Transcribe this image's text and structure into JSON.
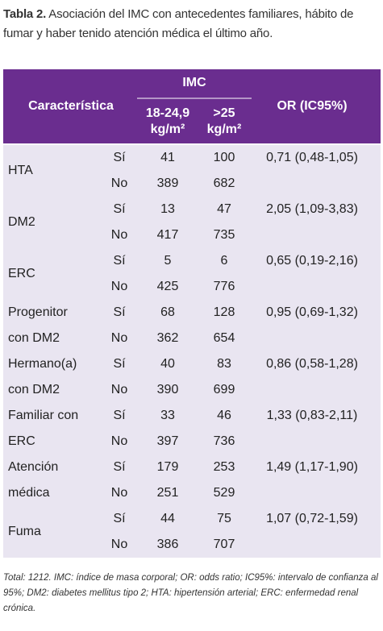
{
  "caption": {
    "label": "Tabla 2.",
    "text": "Asociación del IMC con antecedentes familiares, hábito de fumar y haber tenido atención médica el último año."
  },
  "table": {
    "header": {
      "characteristic": "Característica",
      "group": "IMC",
      "col1": [
        "18-24,9",
        "kg/m²"
      ],
      "col2": [
        ">25",
        "kg/m²"
      ],
      "or": "OR (IC95%)"
    },
    "groups": [
      {
        "label": [
          "HTA"
        ],
        "rows": [
          {
            "answer": "Sí",
            "c1": 41,
            "c2": 100
          },
          {
            "answer": "No",
            "c1": 389,
            "c2": 682
          }
        ],
        "or": "0,71 (0,48-1,05)"
      },
      {
        "label": [
          "DM2"
        ],
        "rows": [
          {
            "answer": "Sí",
            "c1": 13,
            "c2": 47
          },
          {
            "answer": "No",
            "c1": 417,
            "c2": 735
          }
        ],
        "or": "2,05 (1,09-3,83)"
      },
      {
        "label": [
          "ERC"
        ],
        "rows": [
          {
            "answer": "Sí",
            "c1": 5,
            "c2": 6
          },
          {
            "answer": "No",
            "c1": 425,
            "c2": 776
          }
        ],
        "or": "0,65 (0,19-2,16)"
      },
      {
        "label": [
          "Progenitor",
          "con DM2"
        ],
        "rows": [
          {
            "answer": "Sí",
            "c1": 68,
            "c2": 128
          },
          {
            "answer": "No",
            "c1": 362,
            "c2": 654
          }
        ],
        "or": "0,95 (0,69-1,32)"
      },
      {
        "label": [
          "Hermano(a)",
          "con DM2"
        ],
        "rows": [
          {
            "answer": "Sí",
            "c1": 40,
            "c2": 83
          },
          {
            "answer": "No",
            "c1": 390,
            "c2": 699
          }
        ],
        "or": "0,86 (0,58-1,28)"
      },
      {
        "label": [
          "Familiar con",
          "ERC"
        ],
        "rows": [
          {
            "answer": "Sí",
            "c1": 33,
            "c2": 46
          },
          {
            "answer": "No",
            "c1": 397,
            "c2": 736
          }
        ],
        "or": "1,33 (0,83-2,11)"
      },
      {
        "label": [
          "Atención",
          "médica"
        ],
        "rows": [
          {
            "answer": "Sí",
            "c1": 179,
            "c2": 253
          },
          {
            "answer": "No",
            "c1": 251,
            "c2": 529
          }
        ],
        "or": "1,49 (1,17-1,90)"
      },
      {
        "label": [
          "Fuma"
        ],
        "rows": [
          {
            "answer": "Sí",
            "c1": 44,
            "c2": 75
          },
          {
            "answer": "No",
            "c1": 386,
            "c2": 707
          }
        ],
        "or": "1,07 (0,72-1,59)"
      }
    ]
  },
  "footnote": "Total: 1212. IMC: índice de masa corporal; OR: odds ratio; IC95%: intervalo de confianza al 95%; DM2: diabetes mellitus tipo 2; HTA: hipertensión arterial; ERC: enfermedad renal crónica."
}
